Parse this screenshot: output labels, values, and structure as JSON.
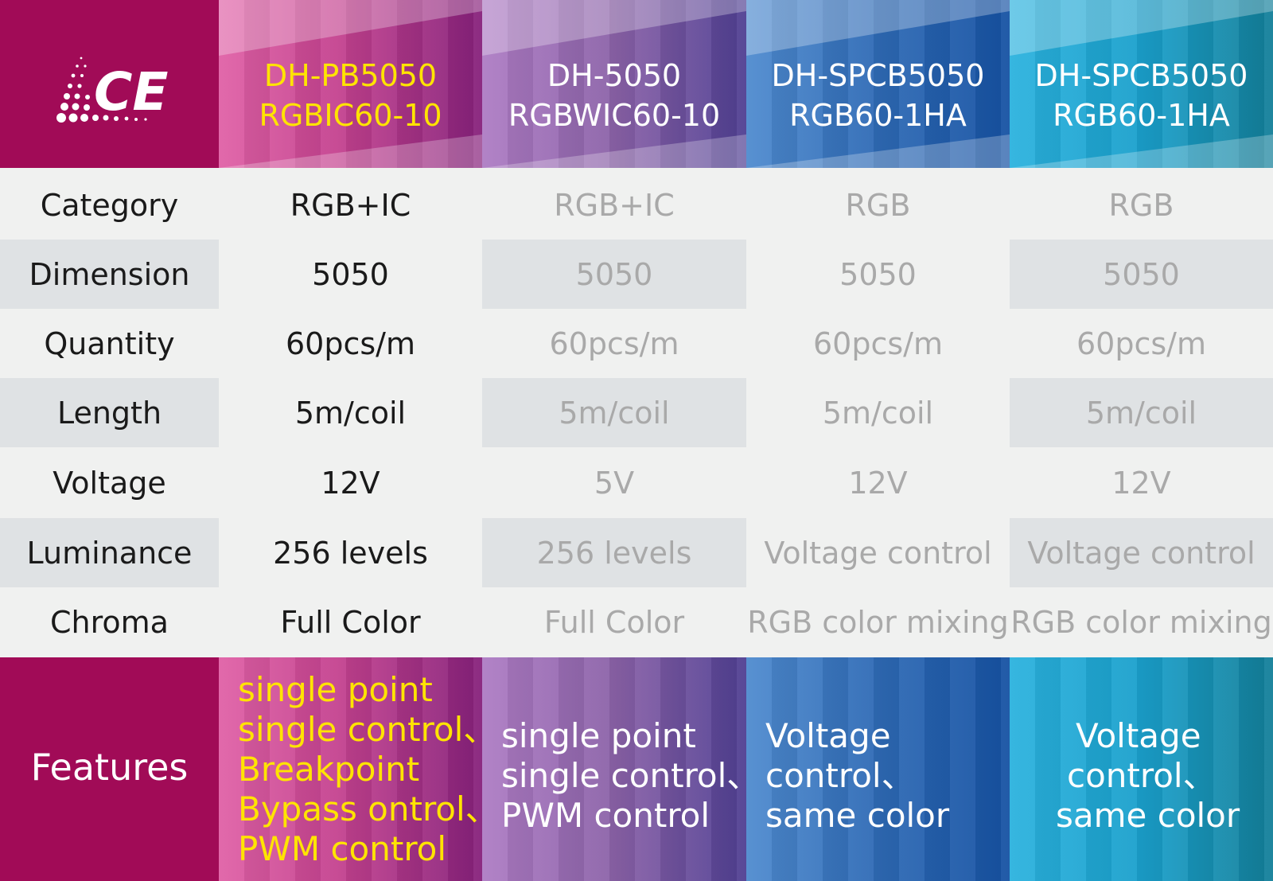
{
  "logo": {
    "text": "CE"
  },
  "colors": {
    "magenta": "#a10b57",
    "highlight_yellow": "#ffe400",
    "muted_text": "#a9a9a9",
    "row_shade": "#dfe2e4"
  },
  "columns": [
    {
      "line1": "DH-PB5050",
      "line2": "RGBIC60-10"
    },
    {
      "line1": "DH-5050",
      "line2": "RGBWIC60-10"
    },
    {
      "line1": "DH-SPCB5050",
      "line2": "RGB60-1HA"
    },
    {
      "line1": "DH-SPCB5050",
      "line2": "RGB60-1HA"
    }
  ],
  "rows": [
    {
      "label": "Category",
      "values": [
        "RGB+IC",
        "RGB+IC",
        "RGB",
        "RGB"
      ]
    },
    {
      "label": "Dimension",
      "values": [
        "5050",
        "5050",
        "5050",
        "5050"
      ]
    },
    {
      "label": "Quantity",
      "values": [
        "60pcs/m",
        "60pcs/m",
        "60pcs/m",
        "60pcs/m"
      ]
    },
    {
      "label": "Length",
      "values": [
        "5m/coil",
        "5m/coil",
        "5m/coil",
        "5m/coil"
      ]
    },
    {
      "label": "Voltage",
      "values": [
        "12V",
        "5V",
        "12V",
        "12V"
      ]
    },
    {
      "label": "Luminance",
      "values": [
        "256 levels",
        "256 levels",
        "Voltage control",
        "Voltage control"
      ]
    },
    {
      "label": "Chroma",
      "values": [
        "Full Color",
        "Full Color",
        "RGB color mixing",
        "RGB color mixing"
      ]
    }
  ],
  "features": {
    "label": "Features",
    "cols": [
      [
        "single point",
        "single control、",
        "Breakpoint",
        "Bypass ontrol、",
        "PWM control"
      ],
      [
        "single point",
        "single control、",
        "PWM control"
      ],
      [
        "Voltage",
        "control、",
        "same color"
      ],
      [
        "Voltage",
        "control、",
        "same color"
      ]
    ]
  }
}
